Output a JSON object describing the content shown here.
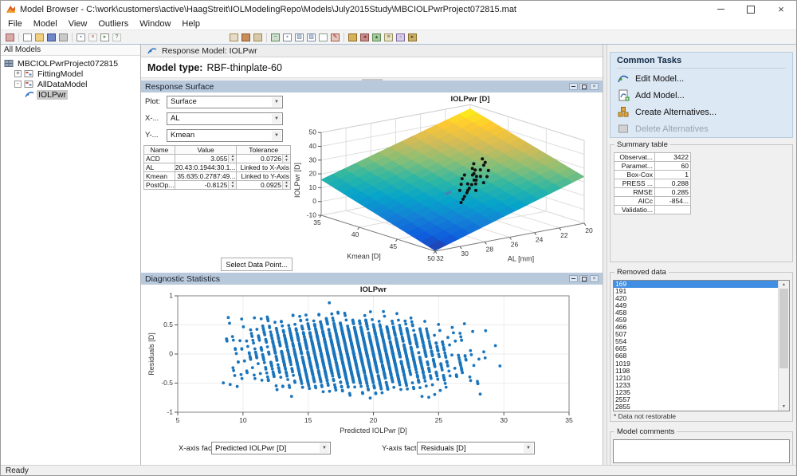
{
  "window": {
    "title": "Model Browser - C:\\work\\customers\\active\\HaagStreit\\IOLModelingRepo\\Models\\July2015Study\\MBCIOLPwrProject072815.mat"
  },
  "menu": {
    "items": [
      "File",
      "Model",
      "View",
      "Outliers",
      "Window",
      "Help"
    ]
  },
  "toolbar": {
    "left": [
      {
        "name": "new-test-plan-icon",
        "bg": "#dba8a8",
        "bd": "#9c5f5f",
        "ch": "",
        "fg": "#7d3b3b"
      },
      {
        "name": "new-file-icon",
        "bg": "#ffffff",
        "bd": "#8f8f8f",
        "ch": "",
        "fg": "#555"
      },
      {
        "name": "open-file-icon",
        "bg": "#f0d080",
        "bd": "#b08f30",
        "ch": "",
        "fg": "#7a5c10"
      },
      {
        "name": "save-icon",
        "bg": "#6f86c9",
        "bd": "#3c4f8a",
        "ch": "",
        "fg": "#fff"
      },
      {
        "name": "print-icon",
        "bg": "#c9c9c9",
        "bd": "#8a8a8a",
        "ch": "",
        "fg": "#555"
      },
      {
        "name": "copy-view-icon",
        "bg": "#ffffff",
        "bd": "#8f8f8f",
        "ch": "▪",
        "fg": "#4a6fae"
      },
      {
        "name": "delete-icon",
        "bg": "#f7f7f7",
        "bd": "#c2c2c2",
        "ch": "×",
        "fg": "#c0392b"
      },
      {
        "name": "export-icon",
        "bg": "#ffffff",
        "bd": "#8f8f8f",
        "ch": "▸",
        "fg": "#3f8f3f"
      },
      {
        "name": "help-icon",
        "bg": "#f7f7f7",
        "bd": "#c2c2c2",
        "ch": "?",
        "fg": "#2e7d32"
      }
    ],
    "right": [
      {
        "name": "view-test-plan-icon",
        "bg": "#e7dcc8",
        "bd": "#a08a50",
        "ch": "",
        "fg": "#555"
      },
      {
        "name": "fit-models-icon",
        "bg": "#c98d5a",
        "bd": "#8a5a2a",
        "ch": "",
        "fg": "#fff"
      },
      {
        "name": "update-models-icon",
        "bg": "#d9c9a8",
        "bd": "#9a8a50",
        "ch": "",
        "fg": "#555"
      },
      {
        "name": "print-plot-icon",
        "bg": "#cfe0d0",
        "bd": "#5a8a5c",
        "ch": "−",
        "fg": "#2a6a2c"
      },
      {
        "name": "copy-figure-icon",
        "bg": "#ffffff",
        "bd": "#7a8aa0",
        "ch": "▪",
        "fg": "#5a7ab0"
      },
      {
        "name": "zoom-in-icon",
        "bg": "#ffffff",
        "bd": "#7a8aa0",
        "ch": "▨",
        "fg": "#4a6a9a"
      },
      {
        "name": "zoom-out-icon",
        "bg": "#ffffff",
        "bd": "#7a8aa0",
        "ch": "▨",
        "fg": "#4a6a9a"
      },
      {
        "name": "edit-plot-icon",
        "bg": "#ffffff",
        "bd": "#8aa08a",
        "ch": "",
        "fg": "#555"
      },
      {
        "name": "pen-annotate-icon",
        "bg": "#e8c8c0",
        "bd": "#a05a4a",
        "ch": "✎",
        "fg": "#8a2a1a"
      },
      {
        "name": "data-brush-icon",
        "bg": "#d8b25a",
        "bd": "#8a6a20",
        "ch": "",
        "fg": "#555"
      },
      {
        "name": "legend-icon",
        "bg": "#c88a8a",
        "bd": "#8a4a4a",
        "ch": "◂",
        "fg": "#6a2a2a"
      },
      {
        "name": "stats-icon",
        "bg": "#a8c8a0",
        "bd": "#5a8a50",
        "ch": "▴",
        "fg": "#2a5a24"
      },
      {
        "name": "notes-icon",
        "bg": "#e8e2c8",
        "bd": "#9a9060",
        "ch": "≡",
        "fg": "#6a6030"
      },
      {
        "name": "snapshot-icon",
        "bg": "#d8cce8",
        "bd": "#7a6a9a",
        "ch": "◦",
        "fg": "#4a3a6a"
      },
      {
        "name": "movie-icon",
        "bg": "#c9b06a",
        "bd": "#8a702a",
        "ch": "▸",
        "fg": "#5a4510"
      }
    ]
  },
  "tree": {
    "header": "All Models",
    "items": [
      {
        "label": "MBCIOLPwrProject072815",
        "level": 0,
        "expander": null,
        "icon": "project",
        "selected": false
      },
      {
        "label": "FittingModel",
        "level": 1,
        "expander": "+",
        "icon": "model",
        "selected": false
      },
      {
        "label": "AllDataModel",
        "level": 1,
        "expander": "-",
        "icon": "model",
        "selected": false
      },
      {
        "label": "IOLPwr",
        "level": 2,
        "expander": null,
        "icon": "response",
        "selected": true
      }
    ]
  },
  "model_header": {
    "title": "Response Model: IOLPwr"
  },
  "model_type": {
    "label": "Model type:",
    "value": "RBF-thinplate-60"
  },
  "response_surface": {
    "title": "Response Surface",
    "plot_label": "Plot:",
    "plot_value": "Surface",
    "x_label": "X-...",
    "x_value": "AL",
    "y_label": "Y-...",
    "y_value": "Kmean",
    "table": {
      "headers": [
        "Name",
        "Value",
        "Tolerance"
      ],
      "rows": [
        {
          "name": "ACD",
          "value": "3.055",
          "value_spin": true,
          "tol": "0.0726",
          "tol_spin": true
        },
        {
          "name": "AL",
          "value": "20.43:0.1944:30.1...",
          "value_spin": false,
          "tol": "Linked to X-Axis",
          "tol_spin": false
        },
        {
          "name": "Kmean",
          "value": "35.635:0.2787:49...",
          "value_spin": false,
          "tol": "Linked to Y-Axis",
          "tol_spin": false
        },
        {
          "name": "PostOp...",
          "value": "-0.8125",
          "value_spin": true,
          "tol": "0.0925",
          "tol_spin": true
        }
      ]
    },
    "select_button": "Select Data Point..."
  },
  "diagnostics": {
    "title": "Diagnostic Statistics",
    "x_factor_label": "X-axis factor:",
    "x_factor_value": "Predicted IOLPwr [D]",
    "y_factor_label": "Y-axis factor:",
    "y_factor_value": "Residuals [D]"
  },
  "common_tasks": {
    "title": "Common Tasks",
    "items": [
      {
        "label": "Edit Model...",
        "icon": "edit-model-icon",
        "enabled": true
      },
      {
        "label": "Add Model...",
        "icon": "add-model-icon",
        "enabled": true
      },
      {
        "label": "Create Alternatives...",
        "icon": "create-alternatives-icon",
        "enabled": true
      },
      {
        "label": "Delete Alternatives",
        "icon": "delete-alternatives-icon",
        "enabled": false
      }
    ]
  },
  "summary": {
    "title": "Summary table",
    "rows": [
      [
        "Observat...",
        "3422"
      ],
      [
        "Paramet...",
        "60"
      ],
      [
        "Box-Cox",
        "1"
      ],
      [
        "PRESS ...",
        "0.288"
      ],
      [
        "RMSE",
        "0.285"
      ],
      [
        "AICc",
        "-854..."
      ],
      [
        "Validatio...",
        ""
      ]
    ]
  },
  "removed": {
    "title": "Removed data",
    "items": [
      "169",
      "191",
      "420",
      "449",
      "458",
      "459",
      "466",
      "507",
      "554",
      "665",
      "668",
      "1019",
      "1198",
      "1210",
      "1233",
      "1235",
      "2557",
      "2855"
    ],
    "selected_index": 0,
    "footnote": "* Data not restorable"
  },
  "comments": {
    "title": "Model comments"
  },
  "statusbar": {
    "text": "Ready"
  },
  "colors": {
    "accent_header": "#b9c9dc",
    "tasks_bg": "#dce8f4",
    "selection_blue": "#3f8ee3",
    "tree_selection": "#c9c9c9",
    "matlab_blue": "#1b75bc"
  },
  "chart_data": [
    {
      "type": "surface3d",
      "title": "IOLPwr [D]",
      "x": {
        "label": "AL [mm]",
        "range": [
          20,
          32
        ],
        "ticks": [
          32,
          30,
          28,
          26,
          24,
          22,
          20
        ]
      },
      "y": {
        "label": "Kmean [D]",
        "range": [
          35,
          50
        ],
        "ticks": [
          35,
          40,
          45,
          50
        ]
      },
      "z": {
        "label": "IOLPwr [D]",
        "range": [
          -10,
          50
        ],
        "ticks": [
          -10,
          0,
          10,
          20,
          30,
          40,
          50
        ]
      },
      "surface": {
        "formula": "z = 47 - 2.6*(AL-20) - 1.55*(Kmean-35) - 0.012*(AL-20)*(Kmean-35)",
        "coeffs": {
          "c0": 47,
          "cAL": -2.6,
          "cK": -1.55,
          "cX": -0.012
        }
      },
      "colormap_parula": [
        "#352a87",
        "#0f5cdd",
        "#1481d6",
        "#06a4ca",
        "#2eb7a4",
        "#87bf77",
        "#d1bb59",
        "#fec832",
        "#f9fb0e"
      ],
      "points_AL_Kmean_IOLPwr": [
        [
          23.0,
          41.5,
          27
        ],
        [
          23.2,
          42.2,
          26
        ],
        [
          23.5,
          42.5,
          25
        ],
        [
          23.8,
          43.6,
          23.5
        ],
        [
          24.0,
          42.0,
          26
        ],
        [
          24.2,
          43.2,
          24
        ],
        [
          24.4,
          44.4,
          21.5
        ],
        [
          24.5,
          43.0,
          24
        ],
        [
          24.6,
          42.8,
          25
        ],
        [
          24.8,
          44.2,
          22
        ],
        [
          24.9,
          43.5,
          23
        ],
        [
          25.0,
          44.0,
          22
        ],
        [
          25.1,
          45.1,
          19.5
        ],
        [
          25.2,
          43.8,
          23
        ],
        [
          25.4,
          44.6,
          21
        ],
        [
          25.5,
          44.5,
          21
        ],
        [
          25.6,
          43.4,
          23
        ],
        [
          25.8,
          45.2,
          20
        ],
        [
          26.0,
          45.0,
          19.5
        ],
        [
          26.1,
          43.9,
          22
        ],
        [
          26.2,
          44.8,
          20
        ],
        [
          26.4,
          46.2,
          18
        ],
        [
          26.5,
          45.5,
          18.5
        ],
        [
          26.6,
          44.6,
          20
        ],
        [
          26.8,
          45.8,
          18
        ],
        [
          27.0,
          46.0,
          17
        ],
        [
          27.2,
          45.4,
          18
        ],
        [
          27.5,
          46.5,
          16
        ],
        [
          27.8,
          46.8,
          15
        ],
        [
          28.2,
          47.2,
          14
        ]
      ],
      "highlight_points": [
        [
          27.5,
          44.2,
          14
        ],
        [
          26.9,
          43.6,
          13
        ]
      ],
      "point_color": "#111111",
      "highlight_color": "#4a7fb5"
    },
    {
      "type": "scatter",
      "title": "IOLPwr",
      "xlabel": "Predicted IOLPwr [D]",
      "ylabel": "Residuals [D]",
      "xlim": [
        5,
        35
      ],
      "ylim": [
        -1,
        1
      ],
      "xticks": [
        5,
        10,
        15,
        20,
        25,
        30,
        35
      ],
      "yticks": [
        -1,
        -0.5,
        0,
        0.5,
        1
      ],
      "marker_color": "#1b75bc",
      "n_points": 2600,
      "seed": 20150728,
      "generation": {
        "note": "Residuals vs predicted IOL power; actual powers quantized to 0.5 D steps produce slope -1 stripes",
        "actual_power_range": [
          6,
          31
        ],
        "stripe_step": 0.5,
        "residual_range": [
          -0.88,
          0.88
        ]
      }
    }
  ]
}
